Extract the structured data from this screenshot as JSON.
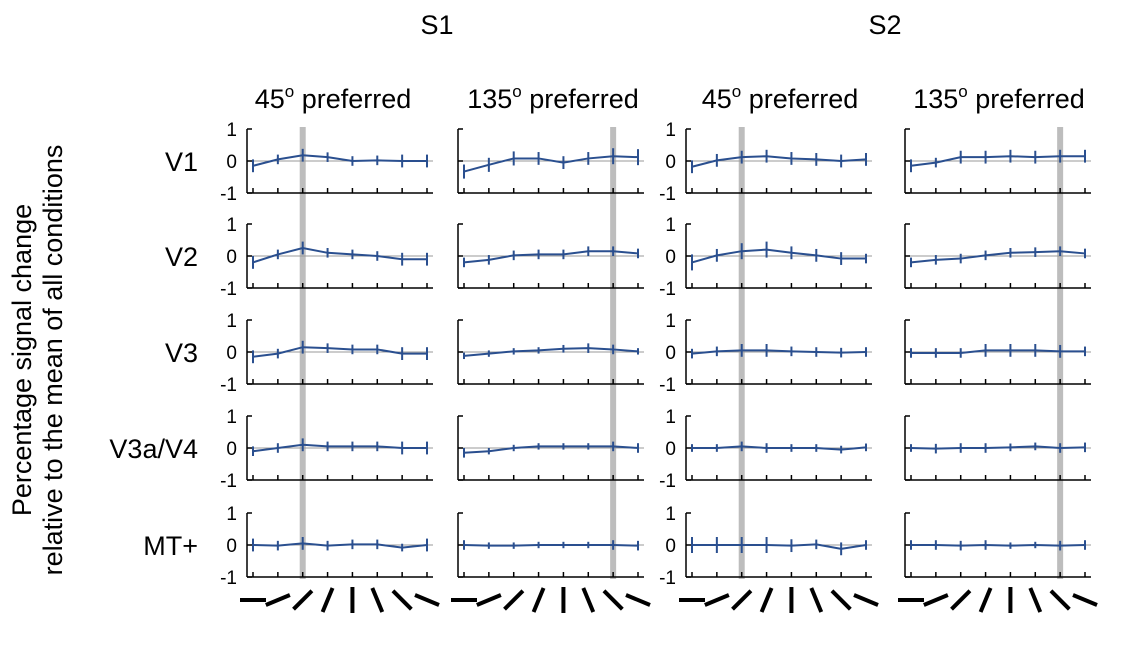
{
  "chart_data": {
    "type": "line",
    "title": "",
    "ylabel": "Percentage signal change relative to the mean of all conditions",
    "ylabel_lines": [
      "Percentage signal change",
      "relative to the mean of all conditions"
    ],
    "subjects": [
      "S1",
      "S2"
    ],
    "panel_titles": [
      {
        "deg": "45",
        "sup": "o",
        "rest": " preferred"
      },
      {
        "deg": "135",
        "sup": "o",
        "rest": " preferred"
      },
      {
        "deg": "45",
        "sup": "o",
        "rest": " preferred"
      },
      {
        "deg": "135",
        "sup": "o",
        "rest": " preferred"
      }
    ],
    "regions": [
      "V1",
      "V2",
      "V3",
      "V3a/V4",
      "MT+"
    ],
    "ylim": [
      -1,
      1
    ],
    "yticks": [
      "1",
      "0",
      "-1"
    ],
    "x_orientations_deg": [
      0,
      22.5,
      45,
      67.5,
      90,
      112.5,
      135,
      157.5
    ],
    "preferred_index": [
      2,
      6,
      2,
      6
    ],
    "grid": false,
    "colors": {
      "line": "#2a4f8f",
      "preferred_band": "#bdbdbd",
      "zero_line": "#999999",
      "axis": "#000000"
    },
    "panels": [
      [
        {
          "values": [
            -0.15,
            0.05,
            0.18,
            0.12,
            0.0,
            0.02,
            0.0,
            0.0
          ],
          "errors": [
            0.2,
            0.15,
            0.2,
            0.15,
            0.15,
            0.15,
            0.2,
            0.2
          ]
        },
        {
          "values": [
            -0.33,
            -0.12,
            0.08,
            0.08,
            -0.05,
            0.08,
            0.15,
            0.12
          ],
          "errors": [
            0.22,
            0.22,
            0.22,
            0.2,
            0.2,
            0.2,
            0.25,
            0.25
          ]
        },
        {
          "values": [
            -0.18,
            0.02,
            0.12,
            0.15,
            0.08,
            0.05,
            0.0,
            0.05
          ],
          "errors": [
            0.2,
            0.2,
            0.2,
            0.2,
            0.2,
            0.2,
            0.2,
            0.2
          ]
        },
        {
          "values": [
            -0.15,
            -0.05,
            0.12,
            0.12,
            0.15,
            0.12,
            0.15,
            0.15
          ],
          "errors": [
            0.2,
            0.15,
            0.2,
            0.2,
            0.2,
            0.2,
            0.2,
            0.2
          ]
        }
      ],
      [
        {
          "values": [
            -0.2,
            0.05,
            0.25,
            0.1,
            0.05,
            0.0,
            -0.1,
            -0.1
          ],
          "errors": [
            0.2,
            0.15,
            0.2,
            0.15,
            0.15,
            0.15,
            0.2,
            0.2
          ]
        },
        {
          "values": [
            -0.2,
            -0.12,
            0.02,
            0.05,
            0.05,
            0.15,
            0.15,
            0.08
          ],
          "errors": [
            0.15,
            0.15,
            0.15,
            0.15,
            0.15,
            0.15,
            0.15,
            0.15
          ]
        },
        {
          "values": [
            -0.2,
            0.02,
            0.15,
            0.2,
            0.1,
            0.02,
            -0.08,
            -0.08
          ],
          "errors": [
            0.25,
            0.2,
            0.25,
            0.25,
            0.2,
            0.2,
            0.2,
            0.15
          ]
        },
        {
          "values": [
            -0.2,
            -0.12,
            -0.08,
            0.02,
            0.1,
            0.12,
            0.15,
            0.08
          ],
          "errors": [
            0.15,
            0.15,
            0.15,
            0.15,
            0.15,
            0.15,
            0.15,
            0.15
          ]
        }
      ],
      [
        {
          "values": [
            -0.15,
            -0.05,
            0.15,
            0.12,
            0.08,
            0.08,
            -0.05,
            -0.05
          ],
          "errors": [
            0.2,
            0.15,
            0.2,
            0.15,
            0.15,
            0.15,
            0.2,
            0.2
          ]
        },
        {
          "values": [
            -0.12,
            -0.05,
            0.02,
            0.05,
            0.1,
            0.12,
            0.08,
            0.02
          ],
          "errors": [
            0.1,
            0.1,
            0.1,
            0.1,
            0.12,
            0.15,
            0.15,
            0.1
          ]
        },
        {
          "values": [
            -0.05,
            0.02,
            0.05,
            0.05,
            0.02,
            0.0,
            -0.02,
            0.0
          ],
          "errors": [
            0.15,
            0.15,
            0.2,
            0.2,
            0.15,
            0.15,
            0.15,
            0.15
          ]
        },
        {
          "values": [
            -0.03,
            -0.03,
            -0.03,
            0.05,
            0.05,
            0.05,
            0.02,
            0.02
          ],
          "errors": [
            0.15,
            0.15,
            0.15,
            0.2,
            0.2,
            0.2,
            0.2,
            0.15
          ]
        }
      ],
      [
        {
          "values": [
            -0.1,
            0.0,
            0.1,
            0.05,
            0.05,
            0.05,
            0.0,
            0.0
          ],
          "errors": [
            0.15,
            0.15,
            0.2,
            0.15,
            0.15,
            0.15,
            0.2,
            0.2
          ]
        },
        {
          "values": [
            -0.15,
            -0.1,
            0.0,
            0.05,
            0.05,
            0.05,
            0.05,
            0.0
          ],
          "errors": [
            0.15,
            0.1,
            0.1,
            0.1,
            0.1,
            0.1,
            0.15,
            0.15
          ]
        },
        {
          "values": [
            0.0,
            0.0,
            0.05,
            0.0,
            0.0,
            0.0,
            -0.05,
            0.02
          ],
          "errors": [
            0.12,
            0.12,
            0.15,
            0.15,
            0.12,
            0.12,
            0.12,
            0.12
          ]
        },
        {
          "values": [
            0.0,
            -0.02,
            0.0,
            0.0,
            0.02,
            0.05,
            0.0,
            0.02
          ],
          "errors": [
            0.12,
            0.15,
            0.15,
            0.15,
            0.12,
            0.12,
            0.15,
            0.15
          ]
        }
      ],
      [
        {
          "values": [
            0.0,
            -0.02,
            0.05,
            -0.02,
            0.02,
            0.02,
            -0.08,
            0.0
          ],
          "errors": [
            0.2,
            0.15,
            0.2,
            0.15,
            0.15,
            0.15,
            0.12,
            0.2
          ]
        },
        {
          "values": [
            0.0,
            -0.02,
            -0.02,
            0.0,
            0.0,
            0.0,
            0.0,
            -0.02
          ],
          "errors": [
            0.15,
            0.1,
            0.1,
            0.1,
            0.1,
            0.1,
            0.15,
            0.15
          ]
        },
        {
          "values": [
            0.0,
            0.0,
            0.0,
            0.0,
            -0.02,
            0.02,
            -0.12,
            0.0
          ],
          "errors": [
            0.25,
            0.25,
            0.25,
            0.25,
            0.2,
            0.15,
            0.2,
            0.15
          ]
        },
        {
          "values": [
            0.0,
            0.0,
            -0.02,
            0.0,
            -0.02,
            0.0,
            -0.02,
            0.0
          ],
          "errors": [
            0.15,
            0.15,
            0.15,
            0.15,
            0.1,
            0.1,
            0.15,
            0.15
          ]
        }
      ]
    ]
  }
}
